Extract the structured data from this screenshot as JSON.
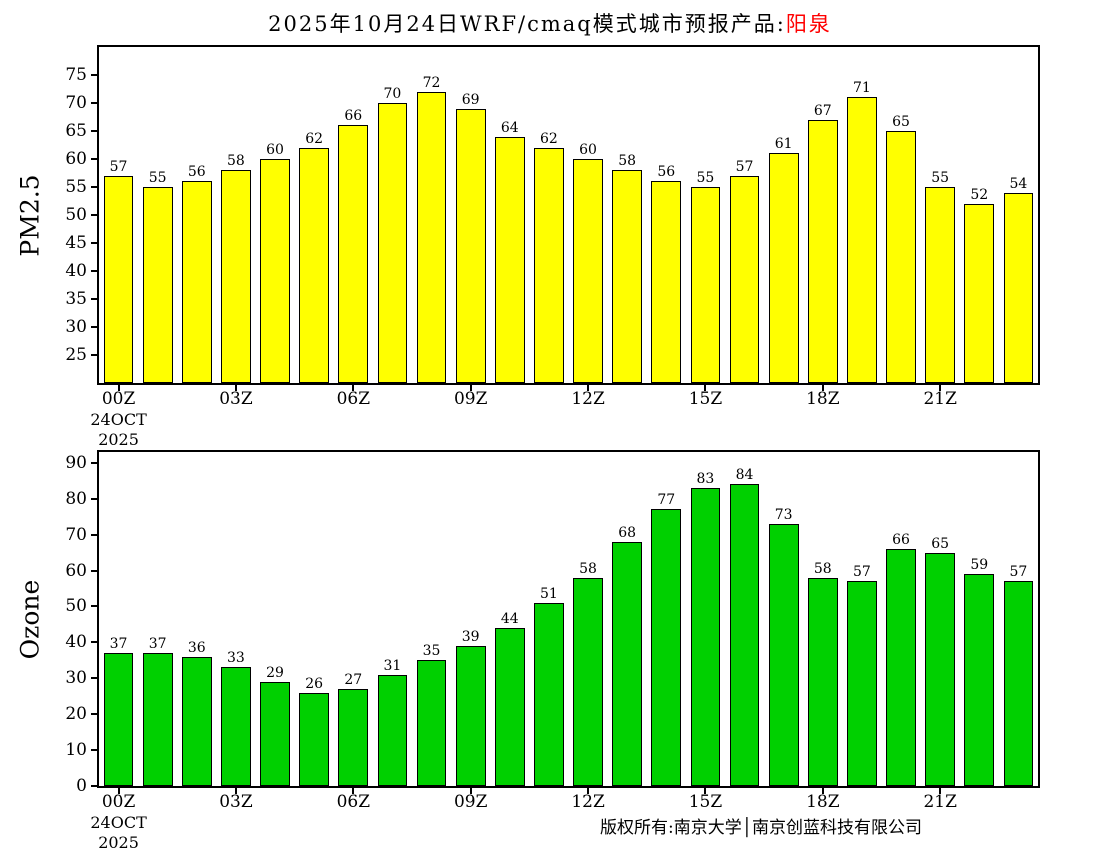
{
  "title": {
    "prefix": "2025年10月24日WRF/cmaq模式城市预报产品:",
    "city": "阳泉",
    "city_color": "#ff0000"
  },
  "footer": "版权所有:南京大学│南京创蓝科技有限公司",
  "chart_data": [
    {
      "type": "bar",
      "id": "pm25",
      "ylabel": "PM2.5",
      "bar_color": "#ffff00",
      "values": [
        57,
        55,
        56,
        58,
        60,
        62,
        66,
        70,
        72,
        69,
        64,
        62,
        60,
        58,
        56,
        55,
        57,
        61,
        67,
        71,
        65,
        55,
        52,
        54
      ],
      "yticks": [
        25,
        30,
        35,
        40,
        45,
        50,
        55,
        60,
        65,
        70,
        75
      ],
      "ylim": [
        20,
        80
      ],
      "grid": false,
      "legend": null,
      "xticks": [
        {
          "pos": 0,
          "label": "00Z"
        },
        {
          "pos": 3,
          "label": "03Z"
        },
        {
          "pos": 6,
          "label": "06Z"
        },
        {
          "pos": 9,
          "label": "09Z"
        },
        {
          "pos": 12,
          "label": "12Z"
        },
        {
          "pos": 15,
          "label": "15Z"
        },
        {
          "pos": 18,
          "label": "18Z"
        },
        {
          "pos": 21,
          "label": "21Z"
        }
      ],
      "x_start_date": [
        "24OCT",
        "2025"
      ]
    },
    {
      "type": "bar",
      "id": "ozone",
      "ylabel": "Ozone",
      "bar_color": "#00d000",
      "values": [
        37,
        37,
        36,
        33,
        29,
        26,
        27,
        31,
        35,
        39,
        44,
        51,
        58,
        68,
        77,
        83,
        84,
        73,
        58,
        57,
        66,
        65,
        59,
        57
      ],
      "yticks": [
        0,
        10,
        20,
        30,
        40,
        50,
        60,
        70,
        80,
        90
      ],
      "ylim": [
        0,
        93
      ],
      "grid": false,
      "legend": null,
      "xticks": [
        {
          "pos": 0,
          "label": "00Z"
        },
        {
          "pos": 3,
          "label": "03Z"
        },
        {
          "pos": 6,
          "label": "06Z"
        },
        {
          "pos": 9,
          "label": "09Z"
        },
        {
          "pos": 12,
          "label": "12Z"
        },
        {
          "pos": 15,
          "label": "15Z"
        },
        {
          "pos": 18,
          "label": "18Z"
        },
        {
          "pos": 21,
          "label": "21Z"
        }
      ],
      "x_start_date": [
        "24OCT",
        "2025"
      ]
    }
  ]
}
